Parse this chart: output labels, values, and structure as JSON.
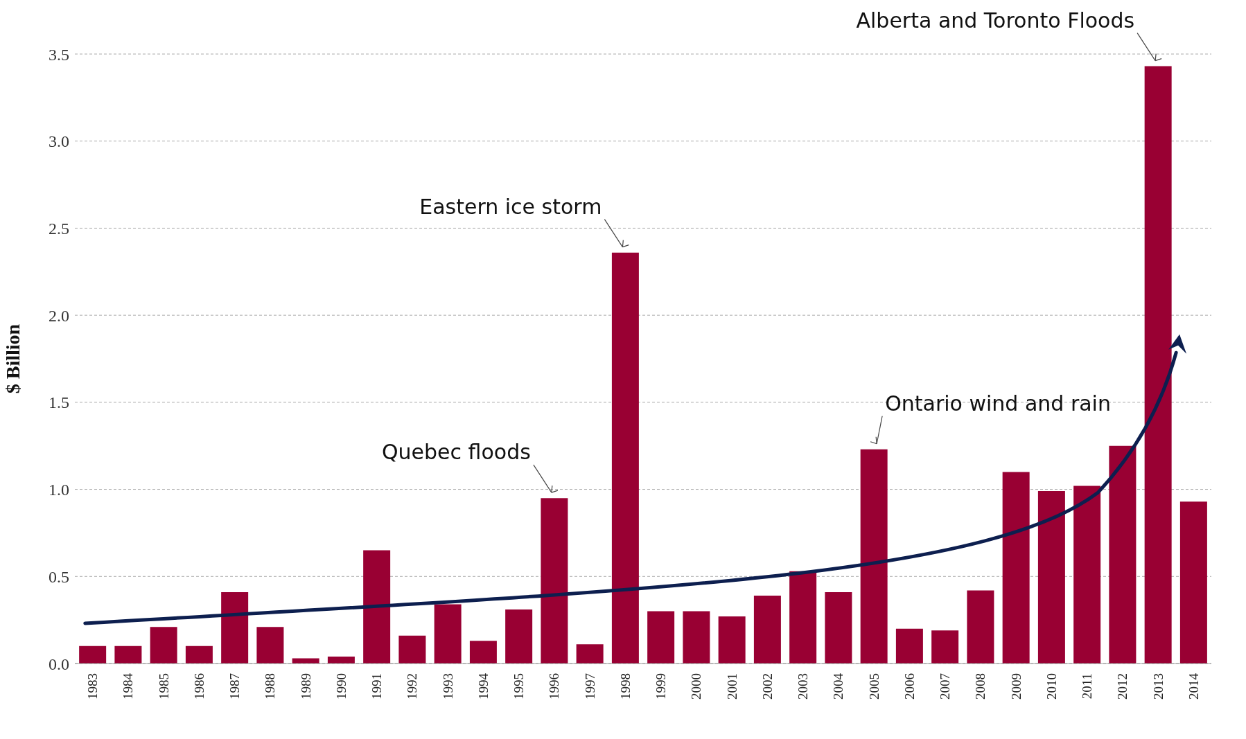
{
  "chart_data": {
    "type": "bar",
    "ylabel": "$ Billion",
    "categories": [
      "1983",
      "1984",
      "1985",
      "1986",
      "1987",
      "1988",
      "1989",
      "1990",
      "1991",
      "1992",
      "1993",
      "1994",
      "1995",
      "1996",
      "1997",
      "1998",
      "1999",
      "2000",
      "2001",
      "2002",
      "2003",
      "2004",
      "2005",
      "2006",
      "2007",
      "2008",
      "2009",
      "2010",
      "2011",
      "2012",
      "2013",
      "2014"
    ],
    "values": [
      0.1,
      0.1,
      0.21,
      0.1,
      0.41,
      0.21,
      0.03,
      0.04,
      0.65,
      0.16,
      0.34,
      0.13,
      0.31,
      0.95,
      0.11,
      2.36,
      0.3,
      0.3,
      0.27,
      0.39,
      0.53,
      0.41,
      1.23,
      0.2,
      0.19,
      0.42,
      1.1,
      0.99,
      1.02,
      1.25,
      3.43,
      0.93
    ],
    "color": "#990033",
    "ylim": [
      0,
      3.5
    ],
    "yticks": [
      {
        "value": 0,
        "label": "0.0"
      },
      {
        "value": 0.5,
        "label": "0.5"
      },
      {
        "value": 1,
        "label": "1.0"
      },
      {
        "value": 1.5,
        "label": "1.5"
      },
      {
        "value": 2,
        "label": "2.0"
      },
      {
        "value": 2.5,
        "label": "2.5"
      },
      {
        "value": 3,
        "label": "3.0"
      },
      {
        "value": 3.5,
        "label": "3.5"
      }
    ],
    "grid": "y",
    "annotations": [
      {
        "text": "Quebec floods",
        "x": "1996",
        "y": 0.95
      },
      {
        "text": "Eastern ice storm",
        "x": "1998",
        "y": 2.36
      },
      {
        "text": "Ontario wind and rain",
        "x": "2005",
        "y": 1.23
      },
      {
        "text": "Alberta and Toronto Floods",
        "x": "2013",
        "y": 3.43
      }
    ]
  }
}
